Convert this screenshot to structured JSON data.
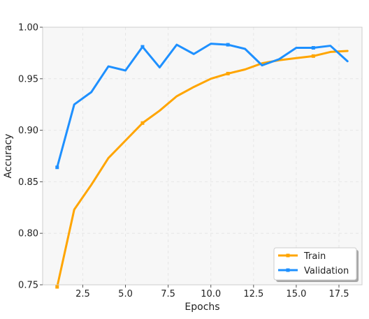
{
  "chart_data": {
    "type": "line",
    "title": "",
    "xlabel": "Epochs",
    "ylabel": "Accuracy",
    "xlim": [
      0.15,
      18.85
    ],
    "ylim": [
      0.75,
      1.0
    ],
    "x_ticks": [
      "2.5",
      "5.0",
      "7.5",
      "10.0",
      "12.5",
      "15.0",
      "17.5"
    ],
    "x_tick_values": [
      2.5,
      5.0,
      7.5,
      10.0,
      12.5,
      15.0,
      17.5
    ],
    "y_ticks": [
      "0.75",
      "0.80",
      "0.85",
      "0.90",
      "0.95",
      "1.00"
    ],
    "y_tick_values": [
      0.75,
      0.8,
      0.85,
      0.9,
      0.95,
      1.0
    ],
    "grid": true,
    "legend_position": "bottom-right",
    "x": [
      1,
      2,
      3,
      4,
      5,
      6,
      7,
      8,
      9,
      10,
      11,
      12,
      13,
      14,
      15,
      16,
      17,
      18
    ],
    "marker_every": 5,
    "series": [
      {
        "name": "Train",
        "color": "#ffa500",
        "values": [
          0.748,
          0.823,
          0.847,
          0.873,
          0.89,
          0.907,
          0.919,
          0.933,
          0.942,
          0.95,
          0.955,
          0.959,
          0.965,
          0.968,
          0.97,
          0.972,
          0.976,
          0.977
        ]
      },
      {
        "name": "Validation",
        "color": "#1e90ff",
        "values": [
          0.864,
          0.925,
          0.937,
          0.962,
          0.958,
          0.981,
          0.961,
          0.983,
          0.974,
          0.984,
          0.983,
          0.979,
          0.963,
          0.969,
          0.98,
          0.98,
          0.982,
          0.967
        ]
      }
    ]
  },
  "style": {
    "plot_background": "#f7f7f7",
    "grid_color": "#e6e6e6",
    "frame_color": "#cccccc"
  }
}
